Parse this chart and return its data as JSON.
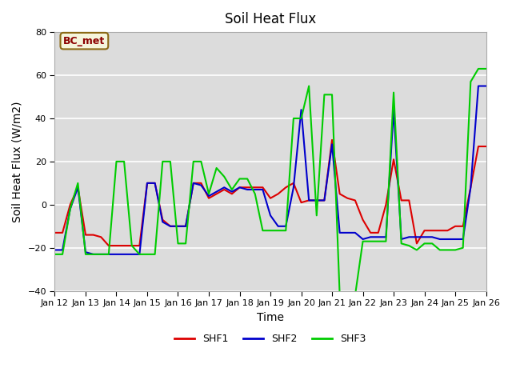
{
  "title": "Soil Heat Flux",
  "xlabel": "Time",
  "ylabel": "Soil Heat Flux (W/m2)",
  "ylim": [
    -40,
    80
  ],
  "yticks": [
    -40,
    -20,
    0,
    20,
    40,
    60,
    80
  ],
  "background_color": "#ffffff",
  "plot_bg_color": "#dcdcdc",
  "series": {
    "SHF1": {
      "color": "#dd0000",
      "x": [
        0,
        0.25,
        0.5,
        0.75,
        1.0,
        1.25,
        1.5,
        1.75,
        2.0,
        2.25,
        2.5,
        2.75,
        3.0,
        3.25,
        3.5,
        3.75,
        4.0,
        4.25,
        4.5,
        4.75,
        5.0,
        5.25,
        5.5,
        5.75,
        6.0,
        6.25,
        6.5,
        6.75,
        7.0,
        7.25,
        7.5,
        7.75,
        8.0,
        8.25,
        8.5,
        8.75,
        9.0,
        9.25,
        9.5,
        9.75,
        10.0,
        10.25,
        10.5,
        10.75,
        11.0,
        11.25,
        11.5,
        11.75,
        12.0,
        12.25,
        12.5,
        12.75,
        13.0,
        13.25,
        13.5,
        13.75,
        14.0
      ],
      "y": [
        -13,
        -13,
        0,
        8,
        -14,
        -14,
        -15,
        -19,
        -19,
        -19,
        -19,
        -19,
        10,
        10,
        -7,
        -10,
        -10,
        -10,
        10,
        10,
        3,
        5,
        7,
        5,
        8,
        8,
        8,
        8,
        3,
        5,
        8,
        10,
        1,
        2,
        2,
        2,
        30,
        5,
        3,
        2,
        -7,
        -13,
        -13,
        0,
        21,
        2,
        2,
        -18,
        -12,
        -12,
        -12,
        -12,
        -10,
        -10,
        8,
        27,
        27
      ]
    },
    "SHF2": {
      "color": "#0000cc",
      "x": [
        0,
        0.25,
        0.5,
        0.75,
        1.0,
        1.25,
        1.5,
        1.75,
        2.0,
        2.25,
        2.5,
        2.75,
        3.0,
        3.25,
        3.5,
        3.75,
        4.0,
        4.25,
        4.5,
        4.75,
        5.0,
        5.25,
        5.5,
        5.75,
        6.0,
        6.25,
        6.5,
        6.75,
        7.0,
        7.25,
        7.5,
        7.75,
        8.0,
        8.25,
        8.5,
        8.75,
        9.0,
        9.25,
        9.5,
        9.75,
        10.0,
        10.25,
        10.5,
        10.75,
        11.0,
        11.25,
        11.5,
        11.75,
        12.0,
        12.25,
        12.5,
        12.75,
        13.0,
        13.25,
        13.5,
        13.75,
        14.0
      ],
      "y": [
        -21,
        -21,
        -2,
        8,
        -22,
        -23,
        -23,
        -23,
        -23,
        -23,
        -23,
        -23,
        10,
        10,
        -8,
        -10,
        -10,
        -10,
        10,
        9,
        4,
        6,
        8,
        6,
        8,
        7,
        7,
        7,
        -5,
        -10,
        -10,
        8,
        44,
        2,
        2,
        2,
        28,
        -13,
        -13,
        -13,
        -16,
        -15,
        -15,
        -15,
        44,
        -16,
        -15,
        -15,
        -15,
        -15,
        -16,
        -16,
        -16,
        -16,
        8,
        55,
        55
      ]
    },
    "SHF3": {
      "color": "#00cc00",
      "x": [
        0,
        0.25,
        0.5,
        0.75,
        1.0,
        1.25,
        1.5,
        1.75,
        2.0,
        2.25,
        2.5,
        2.75,
        3.0,
        3.25,
        3.5,
        3.75,
        4.0,
        4.25,
        4.5,
        4.75,
        5.0,
        5.25,
        5.5,
        5.75,
        6.0,
        6.25,
        6.5,
        6.75,
        7.0,
        7.25,
        7.5,
        7.75,
        8.0,
        8.25,
        8.5,
        8.75,
        9.0,
        9.25,
        9.5,
        9.75,
        10.0,
        10.25,
        10.5,
        10.75,
        11.0,
        11.25,
        11.5,
        11.75,
        12.0,
        12.25,
        12.5,
        12.75,
        13.0,
        13.25,
        13.5,
        13.75,
        14.0
      ],
      "y": [
        -23,
        -23,
        -2,
        10,
        -23,
        -23,
        -23,
        -23,
        20,
        20,
        -19,
        -23,
        -23,
        -23,
        20,
        20,
        -18,
        -18,
        20,
        20,
        5,
        17,
        13,
        7,
        12,
        12,
        5,
        -12,
        -12,
        -12,
        -12,
        40,
        40,
        55,
        -5,
        51,
        51,
        -42,
        -42,
        -42,
        -17,
        -17,
        -17,
        -17,
        52,
        -18,
        -19,
        -21,
        -18,
        -18,
        -21,
        -21,
        -21,
        -20,
        57,
        63,
        63
      ]
    }
  },
  "xtick_labels": [
    "Jan 12",
    "Jan 13",
    "Jan 14",
    "Jan 15",
    "Jan 16",
    "Jan 17",
    "Jan 18",
    "Jan 19",
    "Jan 20",
    "Jan 21",
    "Jan 22",
    "Jan 23",
    "Jan 24",
    "Jan 25",
    "Jan 26"
  ],
  "xtick_positions": [
    0,
    1,
    2,
    3,
    4,
    5,
    6,
    7,
    8,
    9,
    10,
    11,
    12,
    13,
    14
  ],
  "legend_items": [
    "SHF1",
    "SHF2",
    "SHF3"
  ],
  "legend_colors": [
    "#dd0000",
    "#0000cc",
    "#00cc00"
  ],
  "annotation_text": "BC_met",
  "annotation_color": "#8b0000",
  "annotation_bg": "#f5f5dc",
  "annotation_border": "#8b6914"
}
